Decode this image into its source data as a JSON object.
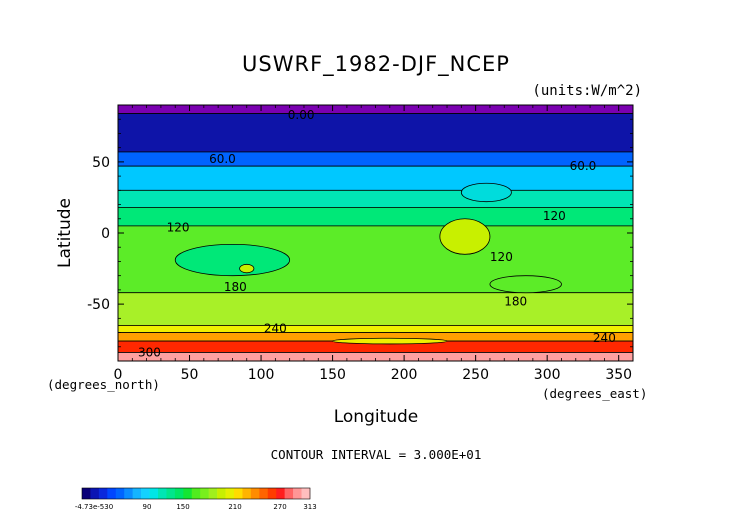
{
  "chart_data": {
    "type": "heatmap",
    "title": "USWRF_1982-DJF_NCEP",
    "units": "(units:W/m^2)",
    "xlabel": "Longitude",
    "ylabel": "Latitude",
    "x_units_note": "(degrees_east)",
    "y_units_note": "(degrees_north)",
    "xlim": [
      0,
      360
    ],
    "ylim": [
      -90,
      90
    ],
    "x_ticks": [
      0,
      50,
      100,
      150,
      200,
      250,
      300,
      350
    ],
    "y_ticks": [
      50,
      0,
      -50
    ],
    "contour_interval_text": "CONTOUR INTERVAL = 3.000E+01",
    "contour_labels": [
      {
        "text": "0.00",
        "x": 128,
        "y": 83
      },
      {
        "text": "60.0",
        "x": 73,
        "y": 52
      },
      {
        "text": "60.0",
        "x": 325,
        "y": 47
      },
      {
        "text": "120",
        "x": 42,
        "y": 4
      },
      {
        "text": "120",
        "x": 305,
        "y": 12
      },
      {
        "text": "120",
        "x": 268,
        "y": -17
      },
      {
        "text": "180",
        "x": 82,
        "y": -38
      },
      {
        "text": "180",
        "x": 278,
        "y": -48
      },
      {
        "text": "240",
        "x": 110,
        "y": -67
      },
      {
        "text": "240",
        "x": 340,
        "y": -74
      },
      {
        "text": "300",
        "x": 22,
        "y": -84
      }
    ],
    "bands": [
      {
        "lat_top": 90,
        "lat_bottom": 84,
        "value": 0,
        "color": "#7a00b0"
      },
      {
        "lat_top": 84,
        "lat_bottom": 57,
        "value": 20,
        "color": "#0e14a8"
      },
      {
        "lat_top": 57,
        "lat_bottom": 47,
        "value": 50,
        "color": "#0064ff"
      },
      {
        "lat_top": 47,
        "lat_bottom": 30,
        "value": 90,
        "color": "#00c8ff"
      },
      {
        "lat_top": 30,
        "lat_bottom": 18,
        "value": 120,
        "color": "#00e6b4"
      },
      {
        "lat_top": 18,
        "lat_bottom": 5,
        "value": 140,
        "color": "#00e878"
      },
      {
        "lat_top": 5,
        "lat_bottom": -42,
        "value": 165,
        "color": "#5cec28"
      },
      {
        "lat_top": -42,
        "lat_bottom": -65,
        "value": 195,
        "color": "#a8f028"
      },
      {
        "lat_top": -65,
        "lat_bottom": -70,
        "value": 230,
        "color": "#f0f000"
      },
      {
        "lat_top": -70,
        "lat_bottom": -76,
        "value": 255,
        "color": "#ffa000"
      },
      {
        "lat_top": -76,
        "lat_bottom": -84,
        "value": 285,
        "color": "#ff2800"
      },
      {
        "lat_top": -84,
        "lat_bottom": -90,
        "value": 305,
        "color": "#ffa0a0"
      }
    ],
    "patches": [
      {
        "lon": [
          225,
          260
        ],
        "lat": [
          10,
          -15
        ],
        "value": 210,
        "color": "#c8f000"
      },
      {
        "lon": [
          240,
          275
        ],
        "lat": [
          35,
          22
        ],
        "value": 100,
        "color": "#00dcdc"
      },
      {
        "lon": [
          40,
          120
        ],
        "lat": [
          -8,
          -30
        ],
        "value": 150,
        "color": "#00e878"
      },
      {
        "lon": [
          260,
          310
        ],
        "lat": [
          -30,
          -42
        ],
        "value": 180,
        "color": "#5cec28"
      },
      {
        "lon": [
          85,
          95
        ],
        "lat": [
          -22,
          -28
        ],
        "value": 210,
        "color": "#c8f000"
      },
      {
        "lon": [
          150,
          230
        ],
        "lat": [
          -74,
          -78
        ],
        "value": 210,
        "color": "#f0f000"
      }
    ],
    "colorbar": {
      "ticks": [
        "-4.73e-530",
        "90",
        "150",
        "210",
        "270",
        "313"
      ],
      "colors": [
        "#0a0078",
        "#0a14b4",
        "#0a28dc",
        "#0046ff",
        "#0064ff",
        "#0a8cff",
        "#14b4ff",
        "#14d2ff",
        "#00e6e6",
        "#00e6b4",
        "#00e68c",
        "#00e664",
        "#14e632",
        "#50ec1e",
        "#78f01e",
        "#a0f01e",
        "#c8f000",
        "#e6f000",
        "#ffdc00",
        "#ffb400",
        "#ff8c00",
        "#ff6400",
        "#ff3c00",
        "#ff1e1e",
        "#ff6464",
        "#ff9696",
        "#ffbebe"
      ]
    }
  }
}
